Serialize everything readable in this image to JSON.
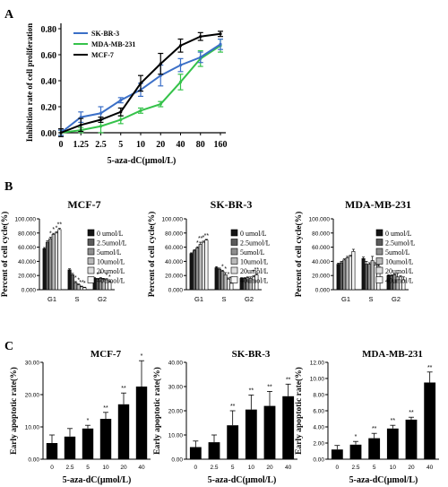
{
  "panel_labels": [
    "A",
    "B",
    "C"
  ],
  "colors": {
    "SK-BR-3": "#3b6fc7",
    "MDA-MB-231": "#35c24a",
    "MCF-7": "#000000",
    "bars_c": "#000000",
    "bar_shades": [
      "#141414",
      "#5a5a5a",
      "#8e8e8e",
      "#b9b9b9",
      "#dedede",
      "#f7f7f7"
    ]
  },
  "chart_data": [
    {
      "id": "A",
      "type": "line",
      "ylabel": "Inhibition rate of cell proliferation",
      "xlabel": "5-aza-dC(μmol/L)",
      "x": [
        "0",
        "1.25",
        "2.5",
        "5",
        "10",
        "20",
        "40",
        "80",
        "160"
      ],
      "ylim": [
        0,
        0.8
      ],
      "yticks": [
        "0.00",
        "0.20",
        "0.40",
        "0.60",
        "0.80"
      ],
      "legend_position": "top-left",
      "series": [
        {
          "name": "SK-BR-3",
          "values": [
            0.0,
            0.12,
            0.15,
            0.25,
            0.33,
            0.44,
            0.52,
            0.58,
            0.68
          ],
          "errors": [
            0.02,
            0.04,
            0.05,
            0.02,
            0.05,
            0.08,
            0.05,
            0.04,
            0.04
          ]
        },
        {
          "name": "MDA-MB-231",
          "values": [
            0.0,
            0.02,
            0.05,
            0.1,
            0.17,
            0.22,
            0.39,
            0.57,
            0.67
          ],
          "errors": [
            0.02,
            0.02,
            0.05,
            0.03,
            0.02,
            0.02,
            0.06,
            0.06,
            0.05
          ]
        },
        {
          "name": "MCF-7",
          "values": [
            0.0,
            0.06,
            0.1,
            0.16,
            0.38,
            0.53,
            0.67,
            0.74,
            0.76
          ],
          "errors": [
            0.03,
            0.05,
            0.02,
            0.03,
            0.06,
            0.08,
            0.05,
            0.03,
            0.02
          ]
        }
      ]
    },
    {
      "id": "B1",
      "type": "bar",
      "title": "MCF-7",
      "ylabel": "Percent of cell cycle(%)",
      "yticks": [
        "0.000",
        "20.000",
        "40.000",
        "60.000",
        "80.000",
        "100.000"
      ],
      "ylim": [
        0,
        100
      ],
      "categories": [
        "G1",
        "S",
        "G2"
      ],
      "legend": [
        "0 umol/L",
        "2.5umol/L",
        "5umol/L",
        "10umol/L",
        "20umol/L",
        "40umol/L"
      ],
      "series": [
        {
          "name": "0 umol/L",
          "values": [
            58,
            28,
            16
          ],
          "errors": [
            1.5,
            1.5,
            1
          ],
          "sig": [
            "",
            "",
            ""
          ]
        },
        {
          "name": "2.5umol/L",
          "values": [
            67,
            21,
            15
          ],
          "errors": [
            2,
            2,
            1
          ],
          "sig": [
            "",
            "",
            "*"
          ]
        },
        {
          "name": "5umol/L",
          "values": [
            72,
            10,
            16
          ],
          "errors": [
            2,
            1.5,
            1
          ],
          "sig": [
            "*",
            "*",
            "*"
          ]
        },
        {
          "name": "10umol/L",
          "values": [
            78,
            7,
            15
          ],
          "errors": [
            1.5,
            1,
            1
          ],
          "sig": [
            "*",
            "*",
            ""
          ]
        },
        {
          "name": "20umol/L",
          "values": [
            80,
            4,
            14
          ],
          "errors": [
            1.5,
            1,
            1.5
          ],
          "sig": [
            "*",
            "**",
            "*"
          ]
        },
        {
          "name": "40umol/L",
          "values": [
            85,
            3,
            11
          ],
          "errors": [
            1.5,
            0.5,
            1.5
          ],
          "sig": [
            "**",
            "*",
            "*"
          ]
        }
      ]
    },
    {
      "id": "B2",
      "type": "bar",
      "title": "SK-BR-3",
      "ylabel": "Percent of cell cycle(%)",
      "yticks": [
        "0.000",
        "20.000",
        "40.000",
        "60.000",
        "80.000",
        "100.000"
      ],
      "ylim": [
        0,
        100
      ],
      "categories": [
        "G1",
        "S",
        "G2"
      ],
      "legend": [
        "0 umol/L",
        "2.5umol/L",
        "5umol/L",
        "10umol/L",
        "20umol/L",
        "40umol/L"
      ],
      "series": [
        {
          "name": "0 umol/L",
          "values": [
            51,
            31,
            16
          ],
          "errors": [
            1,
            1.5,
            1
          ],
          "sig": [
            "",
            "",
            ""
          ]
        },
        {
          "name": "2.5umol/L",
          "values": [
            55,
            29,
            16
          ],
          "errors": [
            1.5,
            1.5,
            1
          ],
          "sig": [
            "",
            "",
            ""
          ]
        },
        {
          "name": "5umol/L",
          "values": [
            59,
            26,
            17
          ],
          "errors": [
            1.5,
            1.5,
            1
          ],
          "sig": [
            "*",
            "*",
            ""
          ]
        },
        {
          "name": "10umol/L",
          "values": [
            64,
            21,
            16
          ],
          "errors": [
            3,
            3,
            2
          ],
          "sig": [
            "**",
            "*",
            ""
          ]
        },
        {
          "name": "20umol/L",
          "values": [
            67,
            15,
            18
          ],
          "errors": [
            1.5,
            1.5,
            1.5
          ],
          "sig": [
            "*",
            "*",
            "*"
          ]
        },
        {
          "name": "40umol/L",
          "values": [
            70,
            9,
            21
          ],
          "errors": [
            1,
            1,
            1.5
          ],
          "sig": [
            "**",
            "**",
            "**"
          ]
        }
      ]
    },
    {
      "id": "B3",
      "type": "bar",
      "title": "MDA-MB-231",
      "ylabel": "Percent of cell cycle(%)",
      "yticks": [
        "0.000",
        "20.000",
        "40.000",
        "60.000",
        "80.000",
        "100.000"
      ],
      "ylim": [
        0,
        100
      ],
      "categories": [
        "G1",
        "S",
        "G2"
      ],
      "legend": [
        "0 umol/L",
        "2.5umol/L",
        "5umol/L",
        "10umol/L",
        "20umol/L",
        "40umol/L"
      ],
      "series": [
        {
          "name": "0 umol/L",
          "values": [
            36,
            44,
            20
          ],
          "errors": [
            1.5,
            2,
            1
          ],
          "sig": [
            "",
            "",
            ""
          ]
        },
        {
          "name": "2.5umol/L",
          "values": [
            38,
            36,
            20
          ],
          "errors": [
            2,
            4,
            1
          ],
          "sig": [
            "",
            "",
            ""
          ]
        },
        {
          "name": "5umol/L",
          "values": [
            42,
            36,
            21
          ],
          "errors": [
            1.5,
            2,
            1
          ],
          "sig": [
            "",
            "",
            ""
          ]
        },
        {
          "name": "10umol/L",
          "values": [
            45,
            41,
            18
          ],
          "errors": [
            2,
            6,
            5
          ],
          "sig": [
            "",
            "",
            ""
          ]
        },
        {
          "name": "20umol/L",
          "values": [
            47,
            35,
            18
          ],
          "errors": [
            1.5,
            3,
            1.5
          ],
          "sig": [
            "",
            "",
            ""
          ]
        },
        {
          "name": "40umol/L",
          "values": [
            54,
            33,
            14
          ],
          "errors": [
            3,
            2,
            4
          ],
          "sig": [
            "",
            "",
            ""
          ]
        }
      ]
    },
    {
      "id": "C1",
      "type": "bar",
      "title": "MCF-7",
      "ylabel": "Early apoptotic rate(%)",
      "xlabel": "5-aza-dC(μmol/L)",
      "yticks": [
        "0.00",
        "10.00",
        "20.00",
        "30.00"
      ],
      "ylim": [
        0,
        30
      ],
      "categories": [
        "0",
        "2.5",
        "5",
        "10",
        "20",
        "40"
      ],
      "values": [
        5,
        7,
        9.5,
        12.5,
        17,
        22.5
      ],
      "errors": [
        2.5,
        2.5,
        1,
        2,
        3.5,
        8
      ],
      "sig": [
        "",
        "",
        "*",
        "**",
        "**",
        "*"
      ]
    },
    {
      "id": "C2",
      "type": "bar",
      "title": "SK-BR-3",
      "ylabel": "Early apoptotic rate(%)",
      "xlabel": "5-aza-dC(μmol/L)",
      "yticks": [
        "0.00",
        "10.00",
        "20.00",
        "30.00",
        "40.00"
      ],
      "ylim": [
        0,
        40
      ],
      "categories": [
        "0",
        "2.5",
        "5",
        "10",
        "20",
        "40"
      ],
      "values": [
        5,
        7,
        14,
        20.5,
        22,
        26
      ],
      "errors": [
        2.5,
        3,
        6,
        6,
        6,
        5
      ],
      "sig": [
        "",
        "",
        "**",
        "**",
        "**",
        "**"
      ]
    },
    {
      "id": "C3",
      "type": "bar",
      "title": "MDA-MB-231",
      "ylabel": "Early apoptotic rate(%)",
      "xlabel": "5-aza-dC(μmol/L)",
      "yticks": [
        "0.00",
        "2.00",
        "4.00",
        "6.00",
        "8.00",
        "10.00",
        "12.00"
      ],
      "ylim": [
        0,
        12
      ],
      "categories": [
        "0",
        "2.5",
        "5",
        "10",
        "20",
        "40"
      ],
      "values": [
        1.2,
        1.8,
        2.6,
        3.8,
        4.9,
        9.5
      ],
      "errors": [
        0.5,
        0.4,
        0.6,
        0.4,
        0.3,
        1.3
      ],
      "sig": [
        "",
        "*",
        "**",
        "**",
        "**",
        "**"
      ]
    }
  ]
}
